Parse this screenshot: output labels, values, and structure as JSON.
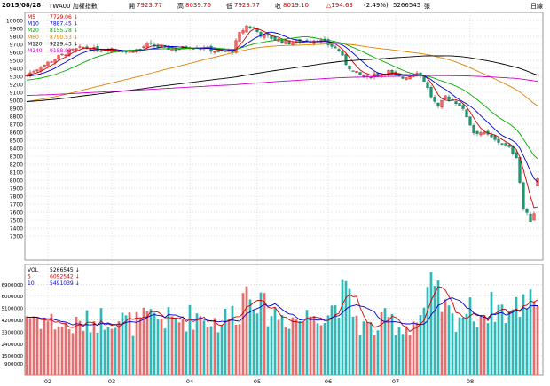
{
  "header": {
    "date": "2015/08/28",
    "symbol": "TWA00 加權指數",
    "open_label": "開",
    "open": "7923.77",
    "high_label": "高",
    "high": "8039.76",
    "low_label": "低",
    "low": "7923.77",
    "close_label": "收",
    "close": "8019.10",
    "change": "△194.63",
    "change_pct": "(2.49%)",
    "volume": "5266545",
    "volume_unit": "張",
    "period": "日線"
  },
  "colors": {
    "up": "#e86d6d",
    "up_stroke": "#cc0000",
    "down": "#30b8b8",
    "down_stroke": "#008080",
    "ma5": "#cc0000",
    "ma10": "#0000cc",
    "ma20": "#00aa00",
    "ma60": "#e08000",
    "ma120": "#000000",
    "ma240": "#cc00cc",
    "grid": "#c0c0c0",
    "frame": "#808080"
  },
  "price_legend": [
    {
      "label": "M5",
      "value": "7729.06",
      "color": "#cc0000"
    },
    {
      "label": "M10",
      "value": "7887.45",
      "color": "#0000cc"
    },
    {
      "label": "M20",
      "value": "8155.28",
      "color": "#00aa00"
    },
    {
      "label": "M60",
      "value": "8790.53",
      "color": "#e08000"
    },
    {
      "label": "M120",
      "value": "9229.43",
      "color": "#000000"
    },
    {
      "label": "M240",
      "value": "9188.92",
      "color": "#cc00cc"
    }
  ],
  "volume_legend": [
    {
      "label": "VOL",
      "value": "5266545",
      "color": "#000000"
    },
    {
      "label": "5",
      "value": "6092542",
      "color": "#cc0000"
    },
    {
      "label": "10",
      "value": "5491039",
      "color": "#0000cc"
    }
  ],
  "chart_data": {
    "type": "candlestick",
    "price_axis": {
      "ylim": [
        7000,
        10100
      ],
      "ticks": [
        "10000",
        "9900",
        "9800",
        "9700",
        "9600",
        "9500",
        "9400",
        "9300",
        "9200",
        "9100",
        "9000",
        "8900",
        "8800",
        "8700",
        "8600",
        "8500",
        "8400",
        "8300",
        "8200",
        "8100",
        "8000",
        "7900",
        "7800",
        "7700",
        "7600",
        "7500",
        "7400",
        "7300"
      ]
    },
    "volume_axis": {
      "ylim": [
        0,
        8400000
      ],
      "ticks": [
        "6900000",
        "6000000",
        "5100000",
        "4200000",
        "3300000",
        "2400000",
        "1500000",
        "900000"
      ]
    },
    "x_ticks": [
      "02",
      "03",
      "04",
      "05",
      "06",
      "07",
      "08"
    ],
    "x_tick_sessions": [
      6,
      24,
      46,
      65,
      85,
      104,
      125
    ],
    "sessions": 145,
    "keypoints": {
      "close": [
        [
          0,
          9320
        ],
        [
          4,
          9420
        ],
        [
          8,
          9520
        ],
        [
          12,
          9610
        ],
        [
          16,
          9660
        ],
        [
          20,
          9630
        ],
        [
          24,
          9650
        ],
        [
          28,
          9610
        ],
        [
          32,
          9640
        ],
        [
          34,
          9700
        ],
        [
          38,
          9660
        ],
        [
          42,
          9640
        ],
        [
          46,
          9670
        ],
        [
          50,
          9660
        ],
        [
          54,
          9600
        ],
        [
          58,
          9620
        ],
        [
          60,
          9830
        ],
        [
          62,
          9930
        ],
        [
          64,
          9900
        ],
        [
          66,
          9820
        ],
        [
          70,
          9770
        ],
        [
          74,
          9720
        ],
        [
          78,
          9740
        ],
        [
          82,
          9760
        ],
        [
          86,
          9680
        ],
        [
          88,
          9620
        ],
        [
          90,
          9460
        ],
        [
          92,
          9360
        ],
        [
          94,
          9320
        ],
        [
          96,
          9280
        ],
        [
          98,
          9330
        ],
        [
          100,
          9340
        ],
        [
          102,
          9360
        ],
        [
          104,
          9300
        ],
        [
          106,
          9280
        ],
        [
          108,
          9320
        ],
        [
          110,
          9360
        ],
        [
          112,
          9250
        ],
        [
          114,
          9050
        ],
        [
          116,
          8900
        ],
        [
          118,
          9050
        ],
        [
          120,
          9000
        ],
        [
          122,
          8950
        ],
        [
          124,
          8800
        ],
        [
          126,
          8600
        ],
        [
          128,
          8600
        ],
        [
          130,
          8560
        ],
        [
          132,
          8500
        ],
        [
          134,
          8460
        ],
        [
          136,
          8400
        ],
        [
          138,
          8300
        ],
        [
          140,
          7650
        ],
        [
          142,
          7500
        ],
        [
          144,
          7680
        ],
        [
          145,
          8019
        ]
      ],
      "volume": [
        [
          0,
          4600000
        ],
        [
          6,
          4200000
        ],
        [
          12,
          3600000
        ],
        [
          18,
          4100000
        ],
        [
          24,
          4500000
        ],
        [
          30,
          3900000
        ],
        [
          36,
          4400000
        ],
        [
          42,
          4100000
        ],
        [
          48,
          4600000
        ],
        [
          54,
          4000000
        ],
        [
          60,
          5000000
        ],
        [
          62,
          6800000
        ],
        [
          64,
          6600000
        ],
        [
          66,
          5100000
        ],
        [
          72,
          4500000
        ],
        [
          78,
          4200000
        ],
        [
          82,
          5200000
        ],
        [
          84,
          4400000
        ],
        [
          88,
          5800000
        ],
        [
          90,
          6100000
        ],
        [
          94,
          3800000
        ],
        [
          98,
          3500000
        ],
        [
          102,
          4300000
        ],
        [
          106,
          3600000
        ],
        [
          110,
          4200000
        ],
        [
          112,
          4800000
        ],
        [
          114,
          6500000
        ],
        [
          116,
          5800000
        ],
        [
          120,
          4200000
        ],
        [
          124,
          4900000
        ],
        [
          128,
          4600000
        ],
        [
          132,
          5300000
        ],
        [
          136,
          4700000
        ],
        [
          140,
          5500000
        ],
        [
          142,
          6600000
        ],
        [
          145,
          5266545
        ]
      ]
    },
    "ma_end_values": {
      "ma5": 7729.06,
      "ma10": 7887.45,
      "ma20": 8155.28,
      "ma60": 8790.53,
      "ma120": 9229.43,
      "ma240": 9188.92
    }
  }
}
